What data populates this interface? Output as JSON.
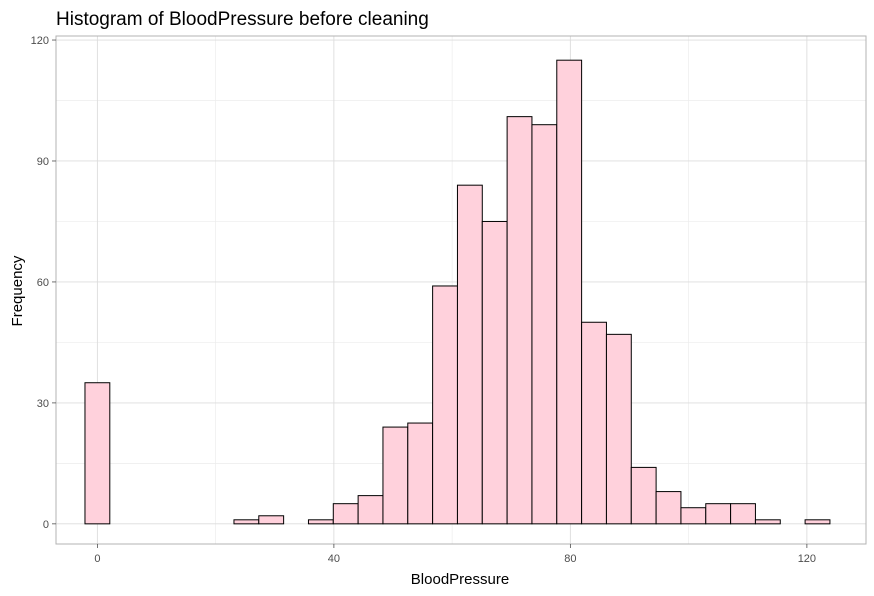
{
  "chart_data": {
    "type": "bar",
    "title": "Histogram of BloodPressure before cleaning",
    "xlabel": "BloodPressure",
    "ylabel": "Frequency",
    "xlim": [
      -7,
      130
    ],
    "ylim": [
      -5,
      121
    ],
    "x_ticks": [
      0,
      40,
      80,
      120
    ],
    "y_ticks": [
      0,
      30,
      60,
      90,
      120
    ],
    "grid": true,
    "fill_color": "#FFD1DC",
    "bar_outline_color": "#000000",
    "bins": [
      {
        "x0": -2.1,
        "x1": 2.1,
        "count": 35
      },
      {
        "x0": 2.1,
        "x1": 6.3,
        "count": 0
      },
      {
        "x0": 6.3,
        "x1": 10.5,
        "count": 0
      },
      {
        "x0": 10.5,
        "x1": 14.7,
        "count": 0
      },
      {
        "x0": 14.7,
        "x1": 18.9,
        "count": 0
      },
      {
        "x0": 18.9,
        "x1": 23.1,
        "count": 0
      },
      {
        "x0": 23.1,
        "x1": 27.3,
        "count": 1
      },
      {
        "x0": 27.3,
        "x1": 31.5,
        "count": 2
      },
      {
        "x0": 31.5,
        "x1": 35.7,
        "count": 0
      },
      {
        "x0": 35.7,
        "x1": 39.9,
        "count": 1
      },
      {
        "x0": 39.9,
        "x1": 44.1,
        "count": 5
      },
      {
        "x0": 44.1,
        "x1": 48.3,
        "count": 7
      },
      {
        "x0": 48.3,
        "x1": 52.5,
        "count": 24
      },
      {
        "x0": 52.5,
        "x1": 56.7,
        "count": 25
      },
      {
        "x0": 56.7,
        "x1": 60.9,
        "count": 59
      },
      {
        "x0": 60.9,
        "x1": 65.1,
        "count": 84
      },
      {
        "x0": 65.1,
        "x1": 69.3,
        "count": 75
      },
      {
        "x0": 69.3,
        "x1": 73.5,
        "count": 101
      },
      {
        "x0": 73.5,
        "x1": 77.7,
        "count": 99
      },
      {
        "x0": 77.7,
        "x1": 81.9,
        "count": 115
      },
      {
        "x0": 81.9,
        "x1": 86.1,
        "count": 50
      },
      {
        "x0": 86.1,
        "x1": 90.3,
        "count": 47
      },
      {
        "x0": 90.3,
        "x1": 94.5,
        "count": 14
      },
      {
        "x0": 94.5,
        "x1": 98.7,
        "count": 8
      },
      {
        "x0": 98.7,
        "x1": 102.9,
        "count": 4
      },
      {
        "x0": 102.9,
        "x1": 107.1,
        "count": 5
      },
      {
        "x0": 107.1,
        "x1": 111.3,
        "count": 5
      },
      {
        "x0": 111.3,
        "x1": 115.5,
        "count": 1
      },
      {
        "x0": 115.5,
        "x1": 119.7,
        "count": 0
      },
      {
        "x0": 119.7,
        "x1": 123.9,
        "count": 1
      }
    ]
  }
}
